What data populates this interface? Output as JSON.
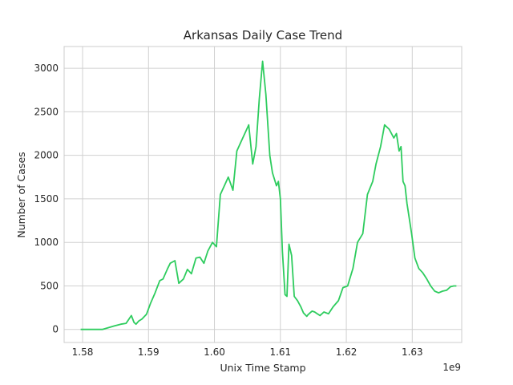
{
  "chart_data": {
    "type": "line",
    "title": "Arkansas Daily Case Trend",
    "xlabel": "Unix Time Stamp",
    "ylabel": "Number of Cases",
    "x_offset_label": "1e9",
    "xlim": [
      1.5772,
      1.6375
    ],
    "ylim": [
      -150,
      3250
    ],
    "x_ticks": [
      1.58,
      1.59,
      1.6,
      1.61,
      1.62,
      1.63
    ],
    "x_tick_labels": [
      "1.58",
      "1.59",
      "1.60",
      "1.61",
      "1.62",
      "1.63"
    ],
    "y_ticks": [
      0,
      500,
      1000,
      1500,
      2000,
      2500,
      3000
    ],
    "y_tick_labels": [
      "0",
      "500",
      "1000",
      "1500",
      "2000",
      "2500",
      "3000"
    ],
    "grid": true,
    "line_color": "#2ecc5e",
    "series": [
      {
        "x": [
          1.5797,
          1.583,
          1.5848,
          1.5858,
          1.5866,
          1.5874,
          1.5878,
          1.5881,
          1.5885,
          1.589,
          1.5897,
          1.5903,
          1.591,
          1.5917,
          1.5922,
          1.5929,
          1.5933,
          1.594,
          1.5946,
          1.5953,
          1.5959,
          1.5965,
          1.5972,
          1.5978,
          1.5984,
          1.599,
          1.5997,
          1.6003,
          1.6009,
          1.6015,
          1.6021,
          1.6028,
          1.6034,
          1.604,
          1.6046,
          1.6052,
          1.6058,
          1.6063,
          1.6068,
          1.6073,
          1.6078,
          1.6084,
          1.6088,
          1.6094,
          1.6097,
          1.61,
          1.6103,
          1.6107,
          1.611,
          1.6113,
          1.6117,
          1.6121,
          1.6126,
          1.6131,
          1.6135,
          1.614,
          1.6142,
          1.6145,
          1.6148,
          1.6152,
          1.6156,
          1.616,
          1.6166,
          1.6173,
          1.618,
          1.6188,
          1.6195,
          1.6202,
          1.621,
          1.6217,
          1.6225,
          1.6232,
          1.624,
          1.6245,
          1.6252,
          1.6258,
          1.6265,
          1.6272,
          1.6276,
          1.628,
          1.6283,
          1.6286,
          1.6289,
          1.6292,
          1.6295,
          1.6299,
          1.6304,
          1.631,
          1.6316,
          1.6322,
          1.6328,
          1.6334,
          1.634,
          1.6346,
          1.6352,
          1.6358,
          1.6363,
          1.6367
        ],
        "y": [
          0,
          0,
          40,
          60,
          70,
          160,
          80,
          60,
          95,
          120,
          175,
          300,
          420,
          560,
          580,
          700,
          760,
          790,
          530,
          580,
          690,
          640,
          820,
          830,
          760,
          900,
          1000,
          950,
          1550,
          1650,
          1750,
          1600,
          2050,
          2150,
          2250,
          2350,
          1900,
          2100,
          2650,
          3080,
          2700,
          2000,
          1800,
          1650,
          1700,
          1500,
          900,
          400,
          380,
          980,
          850,
          380,
          330,
          260,
          190,
          150,
          170,
          190,
          210,
          200,
          180,
          160,
          200,
          180,
          260,
          330,
          480,
          500,
          700,
          1000,
          1100,
          1550,
          1700,
          1900,
          2100,
          2350,
          2300,
          2200,
          2250,
          2050,
          2100,
          1700,
          1650,
          1450,
          1300,
          1100,
          820,
          700,
          650,
          580,
          500,
          440,
          420,
          440,
          450,
          490,
          500,
          500
        ]
      }
    ]
  }
}
